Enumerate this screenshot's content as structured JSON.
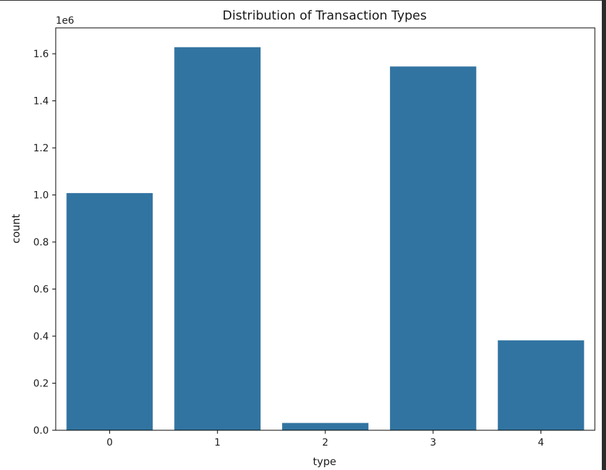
{
  "chart_data": {
    "type": "bar",
    "title": "Distribution of Transaction Types",
    "xlabel": "type",
    "ylabel": "count",
    "offset_label": "1e6",
    "categories": [
      "0",
      "1",
      "2",
      "3",
      "4"
    ],
    "values": [
      1008000,
      1628000,
      31000,
      1546000,
      382000
    ],
    "ylim": [
      0,
      1710000
    ],
    "yticks": [
      0,
      200000,
      400000,
      600000,
      800000,
      1000000,
      1200000,
      1400000,
      1600000
    ],
    "ytick_labels": [
      "0.0",
      "0.2",
      "0.4",
      "0.6",
      "0.8",
      "1.0",
      "1.2",
      "1.4",
      "1.6"
    ],
    "bar_color": "#3274a1",
    "grid": false,
    "legend": "none"
  }
}
